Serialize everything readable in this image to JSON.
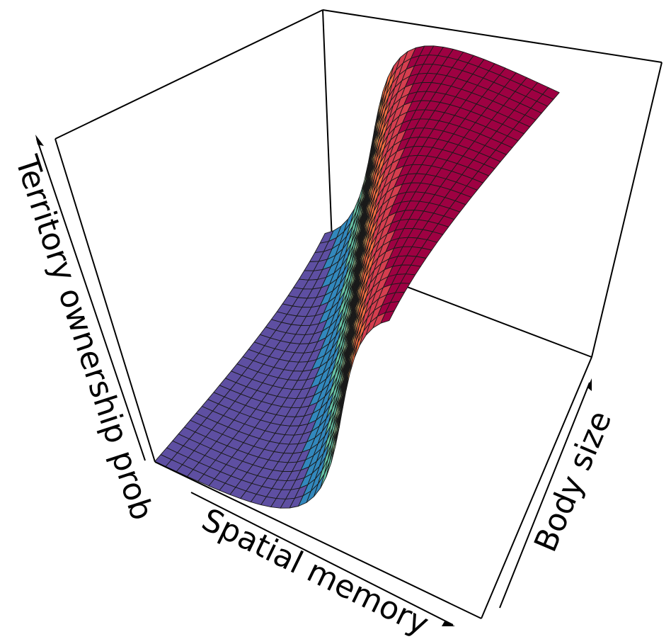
{
  "chart_data": {
    "type": "surface",
    "xlabel": "Spatial memory",
    "ylabel": "Body size",
    "zlabel": "Territory ownership prob",
    "grid": {
      "nx": 30,
      "ny": 30
    },
    "ticks": false,
    "color_scale": [
      "#5e4fa2",
      "#3288bd",
      "#66c2a5",
      "#abdda4",
      "#e6f598",
      "#fee08b",
      "#fdae61",
      "#f46d43",
      "#d53e4f",
      "#9e0142"
    ]
  }
}
